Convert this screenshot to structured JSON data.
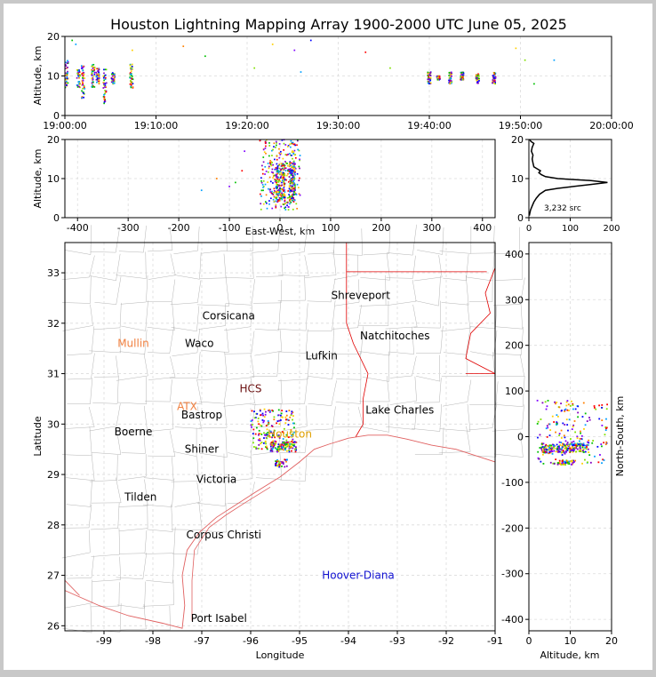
{
  "colors": {
    "background": "#ffffff",
    "frame": "#c8c8c8",
    "state_border": "#e00000",
    "county_border": "#b4b4b4",
    "coast": "#e06060",
    "grid": "#dcdcdc",
    "profile_line": "#000000"
  },
  "chart_data": [
    {
      "id": "time-altitude",
      "type": "scatter",
      "title": "Houston Lightning Mapping Array 1900-2000 UTC June 05, 2025",
      "ylabel": "Altitude, km",
      "xlim_minutes": [
        0,
        60
      ],
      "ylim": [
        0,
        20
      ],
      "xtick_labels": [
        "19:00:00",
        "19:10:00",
        "19:20:00",
        "19:30:00",
        "19:40:00",
        "19:50:00",
        "20:00:00"
      ],
      "xtick_minutes": [
        0,
        10,
        20,
        30,
        40,
        50,
        60
      ],
      "ytick_values": [
        0,
        10,
        20
      ],
      "clusters": [
        {
          "t": 0.2,
          "alt": [
            7,
            14
          ]
        },
        {
          "t": 1.5,
          "alt": [
            7,
            12
          ]
        },
        {
          "t": 2.0,
          "alt": [
            4,
            13
          ]
        },
        {
          "t": 3.1,
          "alt": [
            7,
            13
          ]
        },
        {
          "t": 3.6,
          "alt": [
            8,
            12
          ]
        },
        {
          "t": 4.4,
          "alt": [
            3,
            12
          ]
        },
        {
          "t": 5.3,
          "alt": [
            8,
            11
          ]
        },
        {
          "t": 7.3,
          "alt": [
            7,
            13
          ]
        },
        {
          "t": 40.0,
          "alt": [
            8,
            11
          ]
        },
        {
          "t": 41.0,
          "alt": [
            9,
            10
          ]
        },
        {
          "t": 42.3,
          "alt": [
            8,
            11
          ]
        },
        {
          "t": 43.6,
          "alt": [
            9,
            11
          ]
        },
        {
          "t": 45.3,
          "alt": [
            8,
            10.5
          ]
        },
        {
          "t": 47.1,
          "alt": [
            8,
            11
          ]
        }
      ],
      "outliers": [
        {
          "t": 0.8,
          "alt": 19
        },
        {
          "t": 1.2,
          "alt": 18
        },
        {
          "t": 7.4,
          "alt": 16.5
        },
        {
          "t": 7.2,
          "alt": 12
        },
        {
          "t": 13.0,
          "alt": 17.5
        },
        {
          "t": 15.4,
          "alt": 15
        },
        {
          "t": 20.8,
          "alt": 12
        },
        {
          "t": 22.8,
          "alt": 18
        },
        {
          "t": 25.2,
          "alt": 16.5
        },
        {
          "t": 25.9,
          "alt": 11
        },
        {
          "t": 27.0,
          "alt": 19
        },
        {
          "t": 33.0,
          "alt": 16
        },
        {
          "t": 35.7,
          "alt": 12
        },
        {
          "t": 49.5,
          "alt": 17
        },
        {
          "t": 50.5,
          "alt": 14
        },
        {
          "t": 51.5,
          "alt": 8
        },
        {
          "t": 53.7,
          "alt": 14
        }
      ]
    },
    {
      "id": "east-west-altitude",
      "type": "scatter",
      "xlabel": "East-West, km",
      "ylabel": "Altitude, km",
      "xlim": [
        -425,
        425
      ],
      "ylim": [
        0,
        20
      ],
      "xtick_values": [
        -400,
        -300,
        -200,
        -100,
        0,
        100,
        200,
        300,
        400
      ],
      "ytick_values": [
        0,
        10,
        20
      ],
      "clusters": [
        {
          "x": [
            -40,
            40
          ],
          "alt": [
            2,
            20
          ],
          "n": 260
        },
        {
          "x": [
            -8,
            10
          ],
          "alt": [
            4,
            14
          ],
          "n": 160
        },
        {
          "x": [
            18,
            30
          ],
          "alt": [
            4,
            14
          ],
          "n": 140
        }
      ],
      "outliers": [
        {
          "x": -70,
          "alt": 17
        },
        {
          "x": -75,
          "alt": 12
        },
        {
          "x": -88,
          "alt": 9
        },
        {
          "x": -100,
          "alt": 8
        },
        {
          "x": -125,
          "alt": 10
        },
        {
          "x": -155,
          "alt": 7
        }
      ]
    },
    {
      "id": "altitude-histogram",
      "type": "line",
      "annotation": "3,232 src",
      "xlim": [
        0,
        200
      ],
      "ylim": [
        0,
        20
      ],
      "xtick_values": [
        0,
        100,
        200
      ],
      "ytick_values": [
        0,
        10,
        20
      ],
      "profile": [
        {
          "alt": 0.5,
          "count": 1
        },
        {
          "alt": 1,
          "count": 2
        },
        {
          "alt": 2,
          "count": 4
        },
        {
          "alt": 3,
          "count": 8
        },
        {
          "alt": 4,
          "count": 12
        },
        {
          "alt": 5,
          "count": 18
        },
        {
          "alt": 6,
          "count": 26
        },
        {
          "alt": 7,
          "count": 40
        },
        {
          "alt": 7.5,
          "count": 70
        },
        {
          "alt": 8,
          "count": 110
        },
        {
          "alt": 8.5,
          "count": 150
        },
        {
          "alt": 9,
          "count": 190
        },
        {
          "alt": 9.5,
          "count": 150
        },
        {
          "alt": 10,
          "count": 70
        },
        {
          "alt": 10.5,
          "count": 40
        },
        {
          "alt": 11,
          "count": 30
        },
        {
          "alt": 11.5,
          "count": 24
        },
        {
          "alt": 12,
          "count": 28
        },
        {
          "alt": 12.5,
          "count": 20
        },
        {
          "alt": 13,
          "count": 12
        },
        {
          "alt": 14,
          "count": 10
        },
        {
          "alt": 15,
          "count": 8
        },
        {
          "alt": 16,
          "count": 10
        },
        {
          "alt": 17,
          "count": 6
        },
        {
          "alt": 18,
          "count": 8
        },
        {
          "alt": 19,
          "count": 12
        },
        {
          "alt": 19.5,
          "count": 5
        },
        {
          "alt": 20,
          "count": 2
        }
      ]
    },
    {
      "id": "plan-view-map",
      "type": "scatter",
      "xlabel": "Longitude",
      "ylabel": "Latitude",
      "xlim": [
        -99.8,
        -91.0
      ],
      "ylim": [
        25.9,
        33.6
      ],
      "xtick_values": [
        -99,
        -98,
        -97,
        -96,
        -95,
        -94,
        -93,
        -92,
        -91
      ],
      "ytick_values": [
        26,
        27,
        28,
        29,
        30,
        31,
        32,
        33
      ],
      "clusters": [
        {
          "lon": [
            -96.0,
            -95.1
          ],
          "lat": [
            29.5,
            30.3
          ],
          "n": 170
        },
        {
          "lon": [
            -95.6,
            -95.05
          ],
          "lat": [
            29.45,
            29.65
          ],
          "n": 110
        },
        {
          "lon": [
            -95.5,
            -95.25
          ],
          "lat": [
            29.15,
            29.3
          ],
          "n": 40
        }
      ],
      "cities": [
        {
          "name": "Shreveport",
          "lon": -93.75,
          "lat": 32.55,
          "color": "#000000"
        },
        {
          "name": "Corsicana",
          "lon": -96.45,
          "lat": 32.15,
          "color": "#000000"
        },
        {
          "name": "Natchitoches",
          "lon": -93.05,
          "lat": 31.75,
          "color": "#000000"
        },
        {
          "name": "Mullin",
          "lon": -98.4,
          "lat": 31.6,
          "color": "#f08040"
        },
        {
          "name": "Waco",
          "lon": -97.05,
          "lat": 31.6,
          "color": "#000000"
        },
        {
          "name": "Lufkin",
          "lon": -94.55,
          "lat": 31.35,
          "color": "#000000"
        },
        {
          "name": "HCS",
          "lon": -96.0,
          "lat": 30.7,
          "color": "#6b1010"
        },
        {
          "name": "ATX",
          "lon": -97.3,
          "lat": 30.35,
          "color": "#f08040"
        },
        {
          "name": "Bastrop",
          "lon": -97.0,
          "lat": 30.18,
          "color": "#000000"
        },
        {
          "name": "Lake Charles",
          "lon": -92.95,
          "lat": 30.28,
          "color": "#000000"
        },
        {
          "name": "Boerne",
          "lon": -98.4,
          "lat": 29.85,
          "color": "#000000"
        },
        {
          "name": "Houston",
          "lon": -95.2,
          "lat": 29.8,
          "color": "#e0a000"
        },
        {
          "name": "Shiner",
          "lon": -97.0,
          "lat": 29.5,
          "color": "#000000"
        },
        {
          "name": "Victoria",
          "lon": -96.7,
          "lat": 28.9,
          "color": "#000000"
        },
        {
          "name": "Tilden",
          "lon": -98.25,
          "lat": 28.55,
          "color": "#000000"
        },
        {
          "name": "Corpus Christi",
          "lon": -96.55,
          "lat": 27.8,
          "color": "#000000"
        },
        {
          "name": "Hoover-Diana",
          "lon": -93.8,
          "lat": 27.0,
          "color": "#1010d0"
        },
        {
          "name": "Port Isabel",
          "lon": -96.65,
          "lat": 26.15,
          "color": "#000000"
        }
      ]
    },
    {
      "id": "north-south-altitude",
      "type": "scatter",
      "xlabel": "Altitude, km",
      "ylabel": "North-South, km",
      "xlim": [
        0,
        20
      ],
      "ylim": [
        -425,
        425
      ],
      "xtick_values": [
        0,
        10,
        20
      ],
      "ytick_values": [
        -400,
        -300,
        -200,
        -100,
        0,
        100,
        200,
        300,
        400
      ],
      "clusters": [
        {
          "alt": [
            2,
            19
          ],
          "ns": [
            -60,
            80
          ],
          "n": 180
        },
        {
          "alt": [
            3,
            14
          ],
          "ns": [
            -35,
            -15
          ],
          "n": 200
        },
        {
          "alt": [
            7,
            11
          ],
          "ns": [
            -62,
            -52
          ],
          "n": 50
        }
      ]
    }
  ]
}
